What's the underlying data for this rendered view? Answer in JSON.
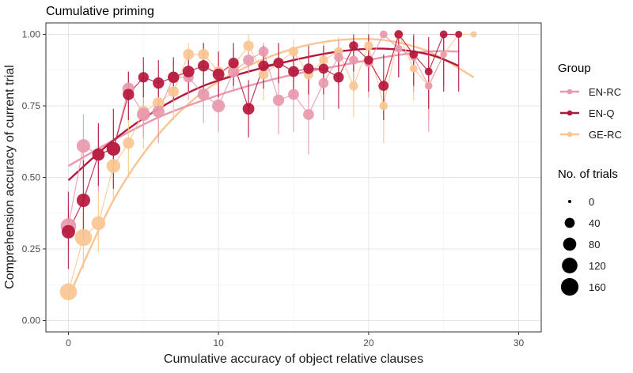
{
  "chart_data": {
    "type": "scatter",
    "title": "Cumulative priming",
    "xlabel": "Cumulative accuracy of object relative clauses",
    "ylabel": "Comprehension accuracy of current trial",
    "xlim": [
      -1.5,
      31.5
    ],
    "ylim": [
      -0.04,
      1.04
    ],
    "xticks": [
      0,
      10,
      20,
      30
    ],
    "yticks": [
      0.0,
      0.25,
      0.5,
      0.75,
      1.0
    ],
    "xtick_labels": [
      "0",
      "10",
      "20",
      "30"
    ],
    "ytick_labels": [
      "0.00",
      "0.25",
      "0.50",
      "0.75",
      "1.00"
    ],
    "grid": true,
    "legend": {
      "group_title": "Group",
      "size_title": "No. of trials",
      "size_values": [
        0,
        40,
        80,
        120,
        160
      ],
      "size_labels": [
        "0",
        "40",
        "80",
        "120",
        "160"
      ],
      "position": "right"
    },
    "series": [
      {
        "name": "EN-RC",
        "color": "#E899AE",
        "x": [
          0,
          1,
          2,
          3,
          4,
          5,
          6,
          7,
          8,
          9,
          10,
          11,
          12,
          13,
          14,
          15,
          16,
          17,
          18,
          19,
          20,
          21,
          22,
          23,
          24,
          25
        ],
        "y": [
          0.33,
          0.61,
          0.58,
          0.6,
          0.81,
          0.72,
          0.73,
          0.85,
          0.85,
          0.79,
          0.75,
          0.87,
          0.91,
          0.94,
          0.77,
          0.79,
          0.72,
          0.83,
          0.92,
          0.91,
          0.9,
          1.0,
          0.95,
          0.92,
          0.82,
          0.93
        ],
        "n": [
          120,
          85,
          60,
          75,
          65,
          80,
          65,
          55,
          45,
          60,
          75,
          55,
          50,
          40,
          55,
          50,
          50,
          40,
          30,
          30,
          25,
          20,
          20,
          15,
          15,
          10
        ],
        "err_low": [
          0.26,
          0.48,
          0.45,
          0.5,
          0.74,
          0.64,
          0.62,
          0.77,
          0.77,
          0.69,
          0.66,
          0.8,
          0.86,
          0.88,
          0.65,
          0.66,
          0.58,
          0.7,
          0.82,
          0.8,
          0.78,
          1.0,
          0.85,
          0.8,
          0.66,
          0.82
        ],
        "err_high": [
          0.4,
          0.72,
          0.68,
          0.7,
          0.87,
          0.79,
          0.82,
          0.91,
          0.91,
          0.87,
          0.82,
          0.92,
          0.95,
          0.97,
          0.86,
          0.88,
          0.84,
          0.92,
          0.98,
          0.98,
          0.97,
          1.0,
          1.0,
          0.99,
          0.94,
          0.99
        ],
        "trend_x": [
          0,
          3,
          6,
          9,
          12,
          15,
          18,
          21,
          24,
          26
        ],
        "trend_y": [
          0.54,
          0.63,
          0.71,
          0.77,
          0.82,
          0.86,
          0.89,
          0.92,
          0.94,
          0.94
        ]
      },
      {
        "name": "EN-Q",
        "color": "#B5173C",
        "x": [
          0,
          1,
          2,
          3,
          4,
          5,
          6,
          7,
          8,
          9,
          10,
          11,
          12,
          13,
          14,
          15,
          16,
          17,
          18,
          19,
          20,
          21,
          22,
          23,
          24,
          25,
          26
        ],
        "y": [
          0.31,
          0.42,
          0.58,
          0.6,
          0.79,
          0.85,
          0.83,
          0.85,
          0.87,
          0.89,
          0.86,
          0.9,
          0.74,
          0.89,
          0.9,
          0.87,
          0.88,
          0.88,
          0.85,
          0.96,
          0.91,
          0.82,
          1.0,
          0.93,
          0.87,
          1.0,
          1.0
        ],
        "n": [
          85,
          85,
          70,
          90,
          55,
          45,
          55,
          55,
          60,
          55,
          60,
          45,
          60,
          45,
          45,
          50,
          45,
          40,
          45,
          30,
          30,
          40,
          25,
          25,
          20,
          20,
          15
        ],
        "err_low": [
          0.18,
          0.28,
          0.47,
          0.46,
          0.7,
          0.78,
          0.74,
          0.77,
          0.8,
          0.8,
          0.78,
          0.82,
          0.64,
          0.81,
          0.83,
          0.78,
          0.79,
          0.79,
          0.74,
          0.87,
          0.8,
          0.7,
          0.85,
          0.82,
          0.74,
          0.8,
          0.8
        ],
        "err_high": [
          0.45,
          0.56,
          0.69,
          0.74,
          0.87,
          0.92,
          0.91,
          0.92,
          0.94,
          0.97,
          0.94,
          0.97,
          0.84,
          0.96,
          0.97,
          0.95,
          0.96,
          0.96,
          0.95,
          1.0,
          1.0,
          0.93,
          1.0,
          1.0,
          0.99,
          1.0,
          1.0
        ],
        "trend_x": [
          0,
          3,
          6,
          9,
          12,
          15,
          18,
          21,
          24,
          26
        ],
        "trend_y": [
          0.49,
          0.63,
          0.74,
          0.82,
          0.87,
          0.91,
          0.94,
          0.95,
          0.93,
          0.89
        ]
      },
      {
        "name": "GE-RC",
        "color": "#FAC592",
        "x": [
          0,
          1,
          2,
          3,
          4,
          5,
          6,
          7,
          8,
          9,
          10,
          11,
          12,
          13,
          14,
          15,
          16,
          17,
          18,
          19,
          20,
          21,
          22,
          23,
          24,
          25,
          26,
          27
        ],
        "y": [
          0.1,
          0.29,
          0.34,
          0.54,
          0.62,
          0.73,
          0.76,
          0.8,
          0.93,
          0.93,
          0.87,
          0.89,
          0.96,
          0.86,
          0.9,
          0.94,
          0.86,
          0.91,
          0.94,
          0.82,
          0.96,
          0.75,
          1.0,
          0.88,
          0.82,
          0.93,
          1.0,
          1.0
        ],
        "n": [
          150,
          150,
          90,
          90,
          55,
          55,
          60,
          50,
          50,
          50,
          45,
          45,
          45,
          40,
          40,
          35,
          35,
          30,
          30,
          30,
          30,
          25,
          25,
          20,
          20,
          15,
          15,
          10
        ],
        "err_low": [
          0.1,
          0.18,
          0.24,
          0.42,
          0.5,
          0.6,
          0.64,
          0.7,
          0.86,
          0.86,
          0.8,
          0.8,
          0.9,
          0.77,
          0.82,
          0.88,
          0.76,
          0.82,
          0.86,
          0.71,
          0.88,
          0.62,
          1.0,
          0.77,
          0.7,
          0.82,
          1.0,
          1.0
        ],
        "err_high": [
          0.1,
          0.4,
          0.45,
          0.65,
          0.73,
          0.84,
          0.86,
          0.88,
          0.97,
          0.97,
          0.93,
          0.95,
          1.0,
          0.93,
          0.96,
          0.98,
          0.94,
          0.97,
          0.99,
          0.91,
          1.0,
          0.86,
          1.0,
          0.96,
          0.92,
          0.99,
          1.0,
          1.0
        ],
        "trend_x": [
          0,
          3,
          6,
          9,
          12,
          15,
          18,
          21,
          24,
          27
        ],
        "trend_y": [
          0.08,
          0.42,
          0.65,
          0.8,
          0.89,
          0.95,
          0.98,
          0.98,
          0.94,
          0.85
        ]
      }
    ]
  }
}
